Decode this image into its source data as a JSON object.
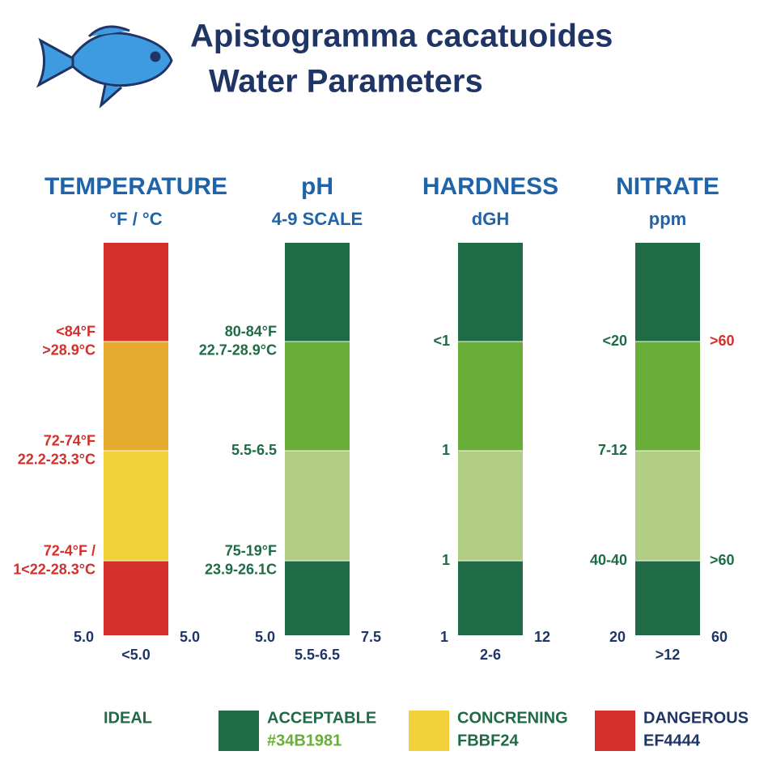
{
  "title": [
    "Apistogramma cacatuoides",
    "Water Parameters"
  ],
  "columns": [
    {
      "name": "TEMPERATURE",
      "unit": "°F / °C",
      "segments": [
        "#d3302c",
        "#e6ab2e",
        "#f2d13b",
        "#d3302c"
      ],
      "left": [
        [
          "<84°F",
          ">28.9°C"
        ],
        [
          "72-74°F",
          "22.2-23.3°C"
        ],
        [
          "72-4°F /",
          "1<22-28.3°C"
        ]
      ],
      "right": [
        null,
        null,
        null
      ],
      "bottom_left": "5.0",
      "bottom_right": "5.0",
      "below": "<5.0"
    },
    {
      "name": "pH",
      "unit": "4-9 SCALE",
      "segments": [
        "#1e6b45",
        "#6aae3a",
        "#b2cd84",
        "#1e6b45"
      ],
      "left": [
        [
          "80-84°F",
          "22.7-28.9°C"
        ],
        [
          "5.5-6.5"
        ],
        [
          "75-19°F",
          "23.9-26.1C"
        ]
      ],
      "right": [
        null,
        null,
        null
      ],
      "bottom_left": "5.0",
      "bottom_right": "7.5",
      "below": "5.5-6.5"
    },
    {
      "name": "HARDNESS",
      "unit": "dGH",
      "segments": [
        "#1e6b45",
        "#6aae3a",
        "#b2cd84",
        "#1e6b45"
      ],
      "left": [
        [
          "<1"
        ],
        [
          "1"
        ],
        [
          "1"
        ]
      ],
      "right": [
        null,
        null,
        null
      ],
      "bottom_left": "1",
      "bottom_right": "12",
      "below": "2-6"
    },
    {
      "name": "NITRATE",
      "unit": "ppm",
      "segments": [
        "#1e6b45",
        "#6aae3a",
        "#b2cd84",
        "#1e6b45"
      ],
      "left": [
        [
          "<20"
        ],
        [
          "7-12"
        ],
        [
          "40-40"
        ]
      ],
      "right": [
        [
          ">60"
        ],
        null,
        [
          ">60"
        ]
      ],
      "bottom_left": "20",
      "bottom_right": "60",
      "below": ">12"
    }
  ],
  "legend": {
    "ideal": "IDEAL",
    "items": [
      {
        "name": "ACCEPTABLE",
        "code": "#34B1981",
        "color": "#1e6b45"
      },
      {
        "name": "CONCRENING",
        "code": "FBBF24",
        "color": "#f2d13b"
      },
      {
        "name": "DANGEROUS",
        "code": "EF4444",
        "color": "#d3302c"
      }
    ]
  }
}
